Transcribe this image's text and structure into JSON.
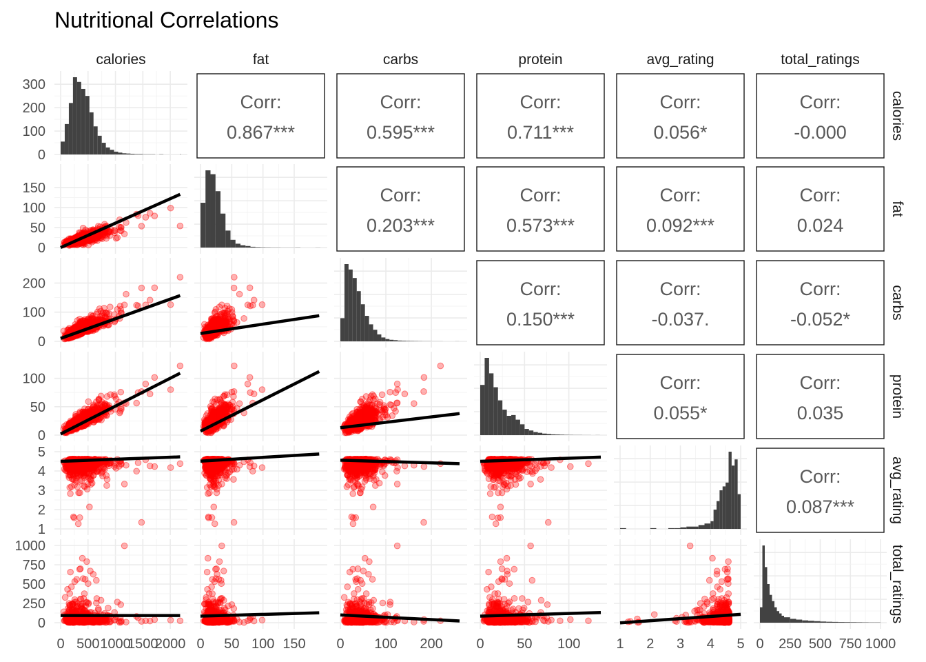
{
  "chart_data": {
    "type": "scatter",
    "title": "Nutritional Correlations",
    "variables": [
      "calories",
      "fat",
      "carbs",
      "protein",
      "avg_rating",
      "total_ratings"
    ],
    "axes": {
      "calories": {
        "range": [
          0,
          2200
        ],
        "ticks": [
          0,
          500,
          1000,
          1500,
          2000
        ],
        "tick_labels": [
          "0",
          "500",
          "1000",
          "1500",
          "2000"
        ]
      },
      "fat": {
        "range": [
          0,
          193
        ],
        "ticks": [
          0,
          50,
          100,
          150
        ],
        "tick_labels": [
          "0",
          "50",
          "100",
          "150"
        ]
      },
      "carbs": {
        "range": [
          0,
          265
        ],
        "ticks": [
          0,
          100,
          200
        ],
        "tick_labels": [
          "0",
          "100",
          "200"
        ]
      },
      "protein": {
        "range": [
          0,
          136
        ],
        "ticks": [
          0,
          50,
          100
        ],
        "tick_labels": [
          "0",
          "50",
          "100"
        ]
      },
      "avg_rating": {
        "range": [
          1,
          5
        ],
        "ticks": [
          1,
          2,
          3,
          4,
          5
        ],
        "tick_labels": [
          "1",
          "2",
          "3",
          "4",
          "5"
        ]
      },
      "total_ratings": {
        "range": [
          0,
          1000
        ],
        "ticks": [
          0,
          250,
          500,
          750,
          1000
        ],
        "tick_labels": [
          "0",
          "250",
          "500",
          "750",
          "1000"
        ]
      }
    },
    "diag_y_axis": {
      "range": [
        0,
        330
      ],
      "ticks": [
        0,
        100,
        200,
        300
      ],
      "tick_labels": [
        "0",
        "100",
        "200",
        "300"
      ]
    },
    "correlations": [
      {
        "row": "calories",
        "col": "fat",
        "label": "Corr:",
        "value": "0.867***"
      },
      {
        "row": "calories",
        "col": "carbs",
        "label": "Corr:",
        "value": "0.595***"
      },
      {
        "row": "calories",
        "col": "protein",
        "label": "Corr:",
        "value": "0.711***"
      },
      {
        "row": "calories",
        "col": "avg_rating",
        "label": "Corr:",
        "value": "0.056*"
      },
      {
        "row": "calories",
        "col": "total_ratings",
        "label": "Corr:",
        "value": "-0.000"
      },
      {
        "row": "fat",
        "col": "carbs",
        "label": "Corr:",
        "value": "0.203***"
      },
      {
        "row": "fat",
        "col": "protein",
        "label": "Corr:",
        "value": "0.573***"
      },
      {
        "row": "fat",
        "col": "avg_rating",
        "label": "Corr:",
        "value": "0.092***"
      },
      {
        "row": "fat",
        "col": "total_ratings",
        "label": "Corr:",
        "value": "0.024"
      },
      {
        "row": "carbs",
        "col": "protein",
        "label": "Corr:",
        "value": "0.150***"
      },
      {
        "row": "carbs",
        "col": "avg_rating",
        "label": "Corr:",
        "value": "-0.037."
      },
      {
        "row": "carbs",
        "col": "total_ratings",
        "label": "Corr:",
        "value": "-0.052*"
      },
      {
        "row": "protein",
        "col": "avg_rating",
        "label": "Corr:",
        "value": "0.055*"
      },
      {
        "row": "protein",
        "col": "total_ratings",
        "label": "Corr:",
        "value": "0.035"
      },
      {
        "row": "avg_rating",
        "col": "total_ratings",
        "label": "Corr:",
        "value": "0.087***"
      }
    ],
    "histograms": {
      "calories": {
        "bins": [
          0,
          75,
          150,
          225,
          300,
          375,
          450,
          525,
          600,
          675,
          750,
          825,
          900,
          975,
          1050,
          1125,
          1200,
          1275,
          1350,
          1425,
          1500,
          1575,
          1650,
          1725,
          1800,
          1875,
          1950,
          2025,
          2100,
          2175
        ],
        "counts": [
          55,
          130,
          220,
          330,
          310,
          280,
          250,
          180,
          120,
          80,
          50,
          30,
          20,
          12,
          8,
          5,
          4,
          3,
          2,
          2,
          1,
          1,
          1,
          0,
          1,
          0,
          0,
          0,
          0,
          1
        ]
      },
      "fat": {
        "bins": [
          0,
          8,
          16,
          24,
          32,
          40,
          48,
          56,
          64,
          72,
          80,
          88,
          96,
          104,
          112,
          120,
          128,
          136,
          144,
          152,
          160,
          168,
          176,
          184
        ],
        "counts": [
          0.58,
          1.0,
          0.95,
          0.73,
          0.44,
          0.22,
          0.1,
          0.05,
          0.03,
          0.02,
          0.01,
          0.006,
          0.004,
          0.003,
          0.002,
          0.002,
          0.001,
          0.001,
          0.001,
          0.002,
          0,
          0,
          0,
          0.001
        ]
      },
      "carbs": {
        "bins": [
          0,
          9,
          18,
          27,
          36,
          45,
          54,
          63,
          72,
          81,
          90,
          99,
          108,
          117,
          126,
          135,
          144,
          153,
          162,
          171,
          180,
          189,
          198,
          207,
          216,
          225,
          234,
          243,
          252
        ],
        "counts": [
          0.3,
          1.0,
          0.93,
          0.82,
          0.65,
          0.48,
          0.33,
          0.22,
          0.15,
          0.09,
          0.05,
          0.03,
          0.02,
          0.015,
          0.01,
          0.008,
          0.006,
          0.005,
          0.004,
          0.003,
          0.002,
          0.002,
          0.001,
          0.001,
          0.001,
          0,
          0,
          0,
          0.001
        ]
      },
      "protein": {
        "bins": [
          0,
          5,
          10,
          15,
          20,
          25,
          30,
          35,
          40,
          45,
          50,
          55,
          60,
          65,
          70,
          75,
          80,
          85,
          90,
          95,
          100,
          105,
          110,
          115,
          120,
          125,
          130
        ],
        "counts": [
          0.65,
          1.0,
          0.8,
          0.62,
          0.45,
          0.33,
          0.25,
          0.26,
          0.2,
          0.14,
          0.08,
          0.06,
          0.04,
          0.03,
          0.02,
          0.015,
          0.01,
          0.008,
          0.006,
          0.004,
          0.003,
          0.002,
          0.002,
          0.001,
          0.001,
          0,
          0.001
        ]
      },
      "avg_rating": {
        "bins": [
          1.0,
          1.2,
          1.4,
          1.6,
          1.8,
          2.0,
          2.2,
          2.4,
          2.6,
          2.8,
          3.0,
          3.2,
          3.4,
          3.6,
          3.8,
          4.0,
          4.1,
          4.2,
          4.3,
          4.4,
          4.5,
          4.6,
          4.7,
          4.8,
          4.9
        ],
        "counts": [
          0.01,
          0,
          0,
          0,
          0,
          0.01,
          0,
          0,
          0.01,
          0.01,
          0.02,
          0.03,
          0.03,
          0.05,
          0.07,
          0.1,
          0.25,
          0.36,
          0.5,
          0.55,
          0.6,
          1.0,
          0.82,
          0.9,
          0.45
        ]
      },
      "total_ratings": {
        "bins": [
          0,
          20,
          40,
          60,
          80,
          100,
          120,
          140,
          160,
          180,
          200,
          250,
          300,
          350,
          400,
          450,
          500,
          550,
          600,
          650,
          700,
          750,
          800,
          850,
          900,
          950
        ],
        "counts": [
          0.2,
          1.0,
          0.72,
          0.5,
          0.36,
          0.28,
          0.2,
          0.15,
          0.12,
          0.09,
          0.07,
          0.05,
          0.04,
          0.03,
          0.025,
          0.02,
          0.015,
          0.012,
          0.01,
          0.008,
          0.007,
          0.006,
          0.005,
          0.004,
          0.003,
          0.003
        ]
      }
    },
    "fit_lines": [
      {
        "x": "calories",
        "y": "fat",
        "from": [
          0,
          0
        ],
        "to": [
          2180,
          133
        ]
      },
      {
        "x": "calories",
        "y": "carbs",
        "from": [
          0,
          10
        ],
        "to": [
          2180,
          157
        ]
      },
      {
        "x": "calories",
        "y": "protein",
        "from": [
          0,
          2
        ],
        "to": [
          2180,
          109
        ]
      },
      {
        "x": "calories",
        "y": "avg_rating",
        "from": [
          0,
          4.5
        ],
        "to": [
          2180,
          4.73
        ]
      },
      {
        "x": "calories",
        "y": "total_ratings",
        "from": [
          0,
          93
        ],
        "to": [
          2180,
          93
        ]
      },
      {
        "x": "fat",
        "y": "carbs",
        "from": [
          0,
          27
        ],
        "to": [
          190,
          88
        ]
      },
      {
        "x": "fat",
        "y": "protein",
        "from": [
          0,
          7
        ],
        "to": [
          190,
          112
        ]
      },
      {
        "x": "fat",
        "y": "avg_rating",
        "from": [
          0,
          4.51
        ],
        "to": [
          190,
          4.88
        ]
      },
      {
        "x": "fat",
        "y": "total_ratings",
        "from": [
          0,
          85
        ],
        "to": [
          190,
          128
        ]
      },
      {
        "x": "carbs",
        "y": "protein",
        "from": [
          0,
          13
        ],
        "to": [
          262,
          38
        ]
      },
      {
        "x": "carbs",
        "y": "avg_rating",
        "from": [
          0,
          4.56
        ],
        "to": [
          262,
          4.38
        ]
      },
      {
        "x": "carbs",
        "y": "total_ratings",
        "from": [
          0,
          100
        ],
        "to": [
          262,
          22
        ]
      },
      {
        "x": "protein",
        "y": "avg_rating",
        "from": [
          0,
          4.5
        ],
        "to": [
          136,
          4.72
        ]
      },
      {
        "x": "protein",
        "y": "total_ratings",
        "from": [
          0,
          85
        ],
        "to": [
          136,
          132
        ]
      },
      {
        "x": "avg_rating",
        "y": "total_ratings",
        "from": [
          1,
          -2
        ],
        "to": [
          5,
          108
        ]
      }
    ],
    "point_color": "#ff0000",
    "fit_color": "#000000",
    "bar_color": "#424242",
    "grid": true
  }
}
